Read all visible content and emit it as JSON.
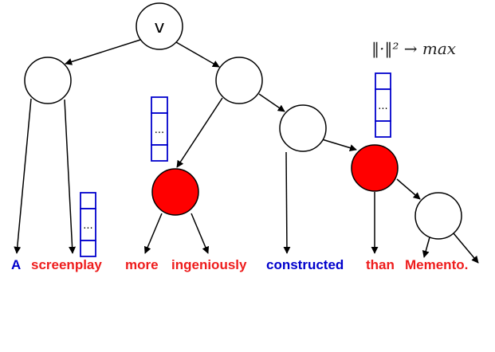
{
  "root_label": "v",
  "formula": "‖·‖² → max",
  "vector_glyph": "...",
  "colors": {
    "blue": "#0000cc",
    "red": "#ee1c1c",
    "node_red": "#ff0000",
    "stroke": "#000000"
  },
  "words": [
    {
      "text": "A",
      "color": "blue"
    },
    {
      "text": "screenplay",
      "color": "red"
    },
    {
      "text": "more",
      "color": "red"
    },
    {
      "text": "ingeniously",
      "color": "red"
    },
    {
      "text": "constructed",
      "color": "blue"
    },
    {
      "text": "than",
      "color": "red"
    },
    {
      "text": "Memento.",
      "color": "red"
    }
  ]
}
